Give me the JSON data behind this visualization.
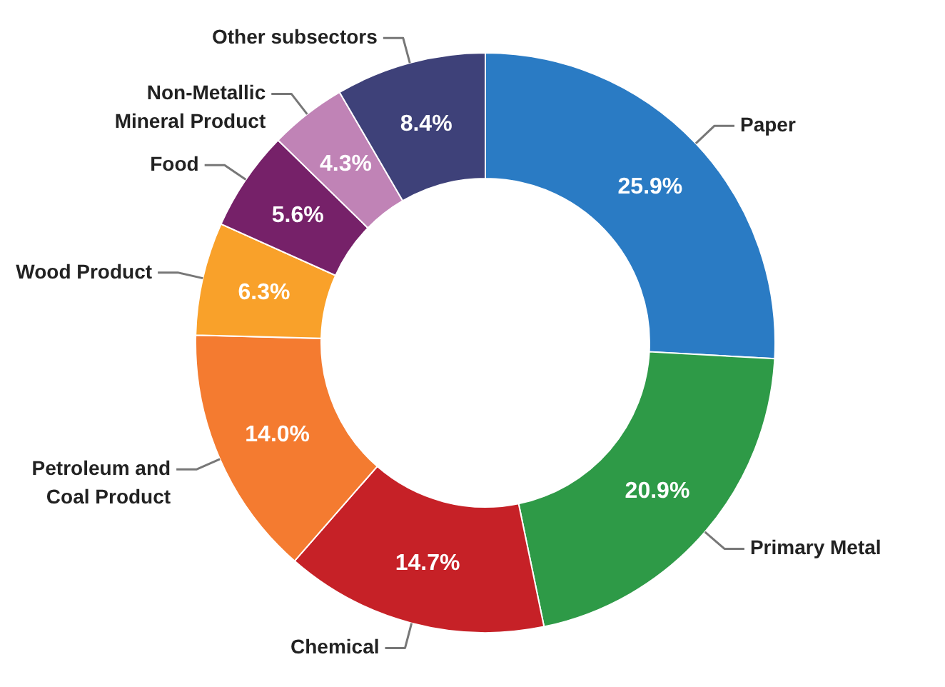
{
  "chart_data": {
    "type": "donut",
    "categories": [
      "Paper",
      "Primary Metal",
      "Chemical",
      "Petroleum and Coal Product",
      "Wood Product",
      "Food",
      "Non-Metallic Mineral Product",
      "Other subsectors"
    ],
    "values": [
      25.9,
      20.9,
      14.7,
      14.0,
      6.3,
      5.6,
      4.3,
      8.4
    ],
    "value_labels": [
      "25.9%",
      "20.9%",
      "14.7%",
      "14.0%",
      "6.3%",
      "5.6%",
      "4.3%",
      "8.4%"
    ],
    "colors": [
      "#2a7bc4",
      "#2e9a47",
      "#c62127",
      "#f47b30",
      "#f9a12a",
      "#762169",
      "#c083b6",
      "#3e4179"
    ]
  }
}
